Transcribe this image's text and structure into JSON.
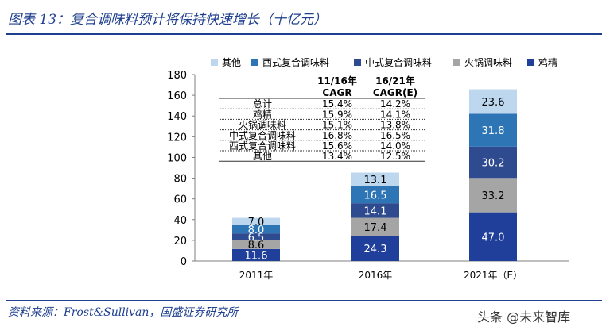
{
  "page": {
    "title": "图表 13：复合调味料预计将保持快速增长（十亿元）",
    "source": "资料来源：Frost&Sullivan，国盛证券研究所",
    "watermark": "头条 @未来智库"
  },
  "chart_data": {
    "type": "bar",
    "stacked": true,
    "title": "复合调味料预计将保持快速增长（十亿元）",
    "categories": [
      "2011年",
      "2016年",
      "2021年（E）"
    ],
    "series": [
      {
        "name": "鸡精",
        "values": [
          11.6,
          24.3,
          47.0
        ],
        "color": "#1f3f9a"
      },
      {
        "name": "火锅调味料",
        "values": [
          8.6,
          17.4,
          33.2
        ],
        "color": "#a5a5a5"
      },
      {
        "name": "中式复合调味料",
        "values": [
          6.5,
          14.1,
          30.2
        ],
        "color": "#2f4b8f"
      },
      {
        "name": "西式复合调味料",
        "values": [
          8.0,
          16.5,
          31.8
        ],
        "color": "#2e75b6"
      },
      {
        "name": "其他",
        "values": [
          7.0,
          13.1,
          23.6
        ],
        "color": "#bdd7ee"
      }
    ],
    "legend_order": [
      "其他",
      "西式复合调味料",
      "中式复合调味料",
      "火锅调味料",
      "鸡精"
    ],
    "ylim": [
      0,
      180
    ],
    "yticks": [
      0,
      20,
      40,
      60,
      80,
      100,
      120,
      140,
      160,
      180
    ],
    "xlabel": "",
    "ylabel": "",
    "label_color_light": "#ffffff",
    "label_color_dark": "#000000",
    "cagr_table": {
      "headers": [
        "",
        "11/16年\nCAGR",
        "16/21年\nCAGR(E)"
      ],
      "rows": [
        [
          "总计",
          "15.4%",
          "14.2%"
        ],
        [
          "鸡精",
          "15.9%",
          "14.1%"
        ],
        [
          "火锅调味料",
          "15.1%",
          "13.8%"
        ],
        [
          "中式复合调味料",
          "16.8%",
          "16.5%"
        ],
        [
          "西式复合调味料",
          "15.6%",
          "14.0%"
        ],
        [
          "其他",
          "13.4%",
          "12.5%"
        ]
      ]
    }
  }
}
